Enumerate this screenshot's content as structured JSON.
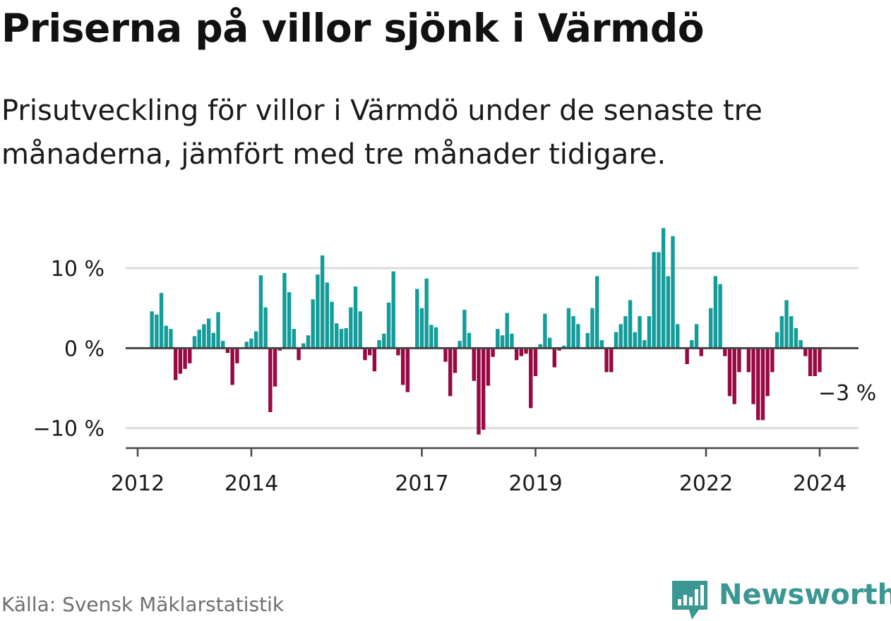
{
  "title": "Priserna på villor sjönk i Värmdö",
  "subtitle": "Prisutveckling för villor i Värmdö under de senaste tre månaderna, jämfört med tre månader tidigare.",
  "source": "Källa: Svensk Mäklarstatistik",
  "brand": {
    "name": "Newsworthy",
    "icon": "newsworthy-logo-icon",
    "color": "#3b9792"
  },
  "colors": {
    "positive": "#139c99",
    "negative": "#980944",
    "grid": "#dcdcdc",
    "axis": "#444444",
    "text": "#1a1a1a"
  },
  "chart_data": {
    "type": "bar",
    "title": "Priserna på villor sjönk i Värmdö",
    "subtitle": "Prisutveckling för villor i Värmdö under de senaste tre månaderna, jämfört med tre månader tidigare.",
    "xlabel": "",
    "ylabel": "",
    "ylim": [
      -12.5,
      16
    ],
    "yticks": [
      {
        "value": 10,
        "label": "10 %"
      },
      {
        "value": 0,
        "label": "0 %"
      },
      {
        "value": -10,
        "label": "−10 %"
      }
    ],
    "xticks": [
      {
        "value": 2012,
        "label": "2012"
      },
      {
        "value": 2014,
        "label": "2014"
      },
      {
        "value": 2017,
        "label": "2017"
      },
      {
        "value": 2019,
        "label": "2019"
      },
      {
        "value": 2022,
        "label": "2022"
      },
      {
        "value": 2024,
        "label": "2024"
      }
    ],
    "x_start": 2012.25,
    "x_step": 0.08333,
    "x_unit": "month",
    "values": [
      4.6,
      4.2,
      6.9,
      2.8,
      2.4,
      -4.0,
      -3.2,
      -2.6,
      -1.9,
      1.5,
      2.3,
      3.0,
      3.7,
      1.9,
      4.5,
      0.9,
      -0.6,
      -4.6,
      -1.9,
      0.0,
      0.8,
      1.2,
      2.1,
      9.1,
      5.1,
      -8.0,
      -4.8,
      -0.3,
      9.4,
      7.0,
      2.4,
      -1.5,
      0.6,
      1.6,
      6.1,
      9.2,
      11.6,
      8.2,
      5.8,
      3.1,
      2.4,
      2.5,
      5.1,
      7.7,
      4.6,
      -1.5,
      -0.9,
      -2.9,
      1.0,
      1.8,
      5.7,
      9.6,
      -0.9,
      -4.6,
      -5.5,
      0.0,
      7.4,
      5.0,
      8.7,
      2.9,
      2.6,
      0.0,
      -1.7,
      -6.0,
      -3.1,
      0.9,
      4.8,
      1.9,
      -4.1,
      -10.8,
      -10.2,
      -4.7,
      -1.1,
      2.4,
      1.6,
      4.4,
      1.8,
      -1.5,
      -1.0,
      -0.7,
      -7.5,
      -3.5,
      0.5,
      4.3,
      1.3,
      -2.4,
      -0.3,
      0.3,
      5.0,
      4.0,
      3.0,
      0.0,
      1.9,
      5.0,
      9.0,
      1.0,
      -3.0,
      -3.0,
      2.0,
      3.0,
      4.0,
      6.0,
      2.0,
      4.0,
      1.0,
      4.0,
      12.0,
      12.0,
      15.0,
      9.0,
      14.0,
      3.0,
      0.0,
      -2.0,
      1.0,
      3.0,
      -1.0,
      0.0,
      5.0,
      9.0,
      8.0,
      -1.0,
      -6.0,
      -7.0,
      -3.0,
      0.0,
      -3.0,
      -7.0,
      -9.0,
      -9.0,
      -6.0,
      -3.0,
      2.0,
      4.0,
      6.0,
      4.0,
      2.5,
      1.0,
      -1.0,
      -3.5,
      -3.5,
      -3.0
    ],
    "annotations": [
      {
        "text": "−3 %",
        "index": 147
      }
    ]
  }
}
